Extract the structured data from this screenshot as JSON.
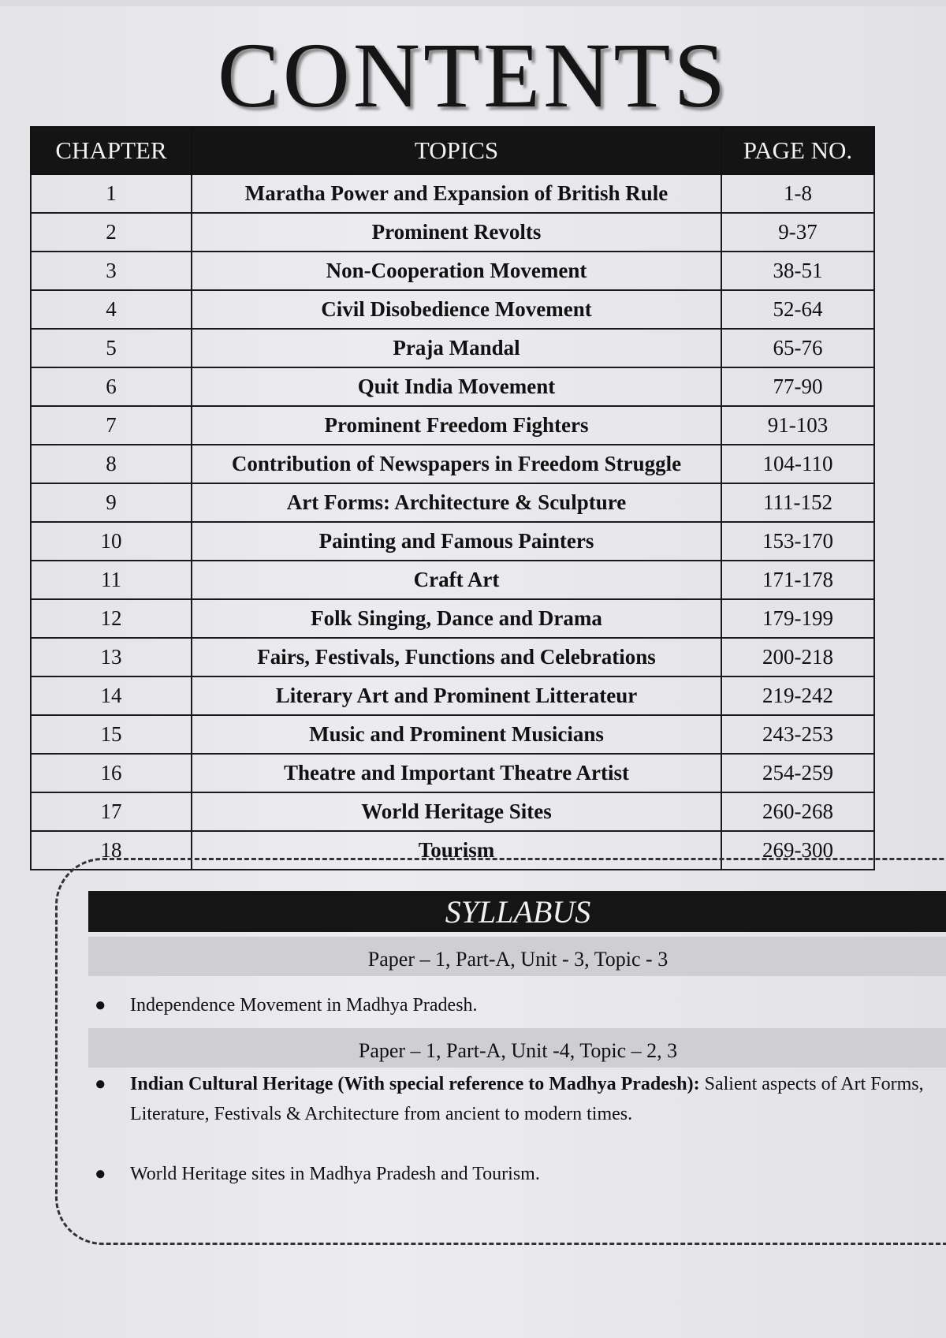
{
  "title": "CONTENTS",
  "table": {
    "headers": [
      "CHAPTER",
      "TOPICS",
      "PAGE NO."
    ],
    "rows": [
      {
        "chapter": "1",
        "topic": "Maratha Power and Expansion of British Rule",
        "pages": "1-8"
      },
      {
        "chapter": "2",
        "topic": "Prominent Revolts",
        "pages": "9-37"
      },
      {
        "chapter": "3",
        "topic": "Non-Cooperation Movement",
        "pages": "38-51"
      },
      {
        "chapter": "4",
        "topic": "Civil Disobedience Movement",
        "pages": "52-64"
      },
      {
        "chapter": "5",
        "topic": "Praja Mandal",
        "pages": "65-76"
      },
      {
        "chapter": "6",
        "topic": "Quit India Movement",
        "pages": "77-90"
      },
      {
        "chapter": "7",
        "topic": "Prominent Freedom Fighters",
        "pages": "91-103"
      },
      {
        "chapter": "8",
        "topic": "Contribution of Newspapers in Freedom Struggle",
        "pages": "104-110"
      },
      {
        "chapter": "9",
        "topic": "Art Forms: Architecture & Sculpture",
        "pages": "111-152"
      },
      {
        "chapter": "10",
        "topic": "Painting and Famous Painters",
        "pages": "153-170"
      },
      {
        "chapter": "11",
        "topic": "Craft Art",
        "pages": "171-178"
      },
      {
        "chapter": "12",
        "topic": "Folk Singing, Dance and Drama",
        "pages": "179-199"
      },
      {
        "chapter": "13",
        "topic": "Fairs, Festivals, Functions and Celebrations",
        "pages": "200-218"
      },
      {
        "chapter": "14",
        "topic": "Literary Art and Prominent Litterateur",
        "pages": "219-242"
      },
      {
        "chapter": "15",
        "topic": "Music and Prominent Musicians",
        "pages": "243-253"
      },
      {
        "chapter": "16",
        "topic": "Theatre and Important Theatre Artist",
        "pages": "254-259"
      },
      {
        "chapter": "17",
        "topic": "World Heritage Sites",
        "pages": "260-268"
      },
      {
        "chapter": "18",
        "topic": "Tourism",
        "pages": "269-300"
      }
    ]
  },
  "syllabus": {
    "heading": "SYLLABUS",
    "section1": "Paper – 1, Part-A, Unit - 3, Topic - 3",
    "item1": "Independence Movement in Madhya Pradesh.",
    "section2": "Paper – 1, Part-A, Unit -4, Topic – 2, 3",
    "item2_bold": "Indian Cultural Heritage (With special reference to Madhya Pradesh):",
    "item2_rest": " Salient aspects of Art Forms, Literature, Festivals & Architecture from ancient to modern times.",
    "item3": "World Heritage sites in Madhya Pradesh and Tourism."
  }
}
